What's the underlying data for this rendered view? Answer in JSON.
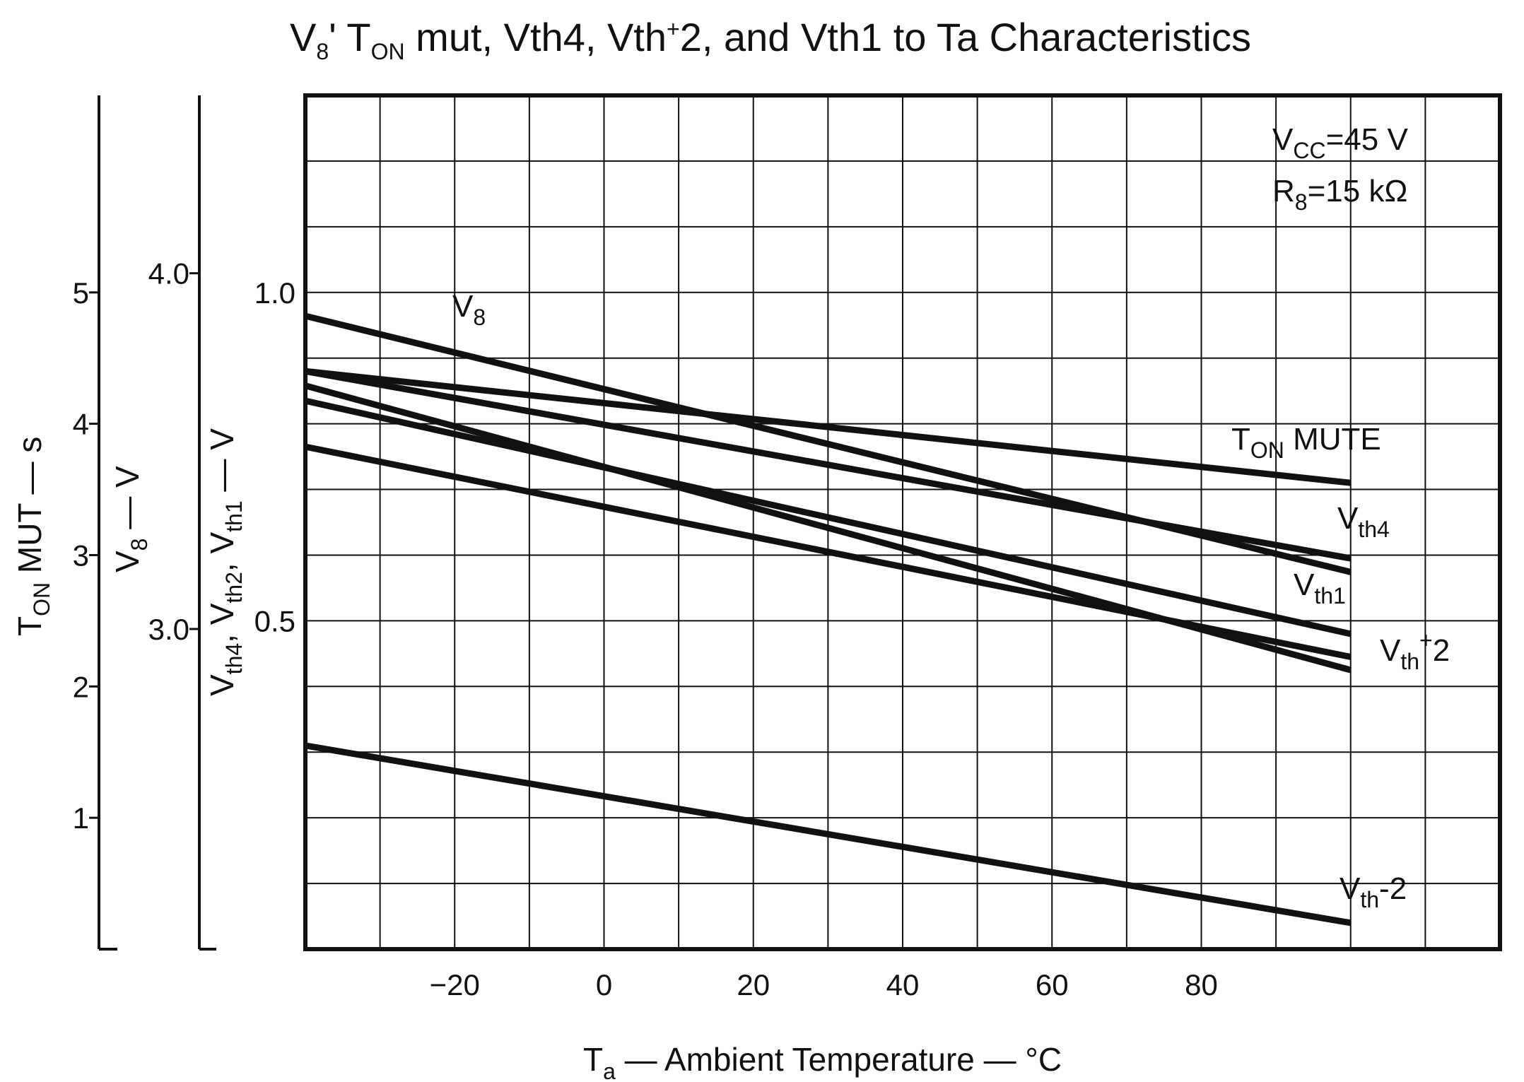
{
  "chart_data": {
    "type": "line",
    "title": {
      "v": "V",
      "v_sub": "8",
      "sep": "' T",
      "t_sub": "ON",
      "rest1": " mut, Vth4, Vth",
      "sup": "+",
      "rest2": "2, and Vth1 to Ta Characteristics"
    },
    "xlabel": {
      "t": "T",
      "t_sub": "a",
      "rest": " — Ambient  Temperature — °C"
    },
    "xlim": [
      -40,
      120
    ],
    "xticks": [
      -20,
      0,
      20,
      40,
      60,
      80
    ],
    "xtick_labels": [
      "−20",
      "0",
      "20",
      "40",
      "60",
      "80"
    ],
    "axes": [
      {
        "id": "ton",
        "label": {
          "t": "T",
          "t_sub": "ON",
          "rest": " MUT — s"
        },
        "range": [
          0,
          6.5
        ],
        "ticks": [
          1,
          2,
          3,
          4,
          5
        ],
        "tick_labels": [
          "1",
          "2",
          "3",
          "4",
          "5"
        ]
      },
      {
        "id": "v8",
        "label": {
          "v": "V",
          "v_sub": "8",
          "rest": " — V"
        },
        "range": [
          2.1,
          4.5
        ],
        "ticks": [
          3.0,
          4.0
        ],
        "tick_labels": [
          "3.0",
          "4.0"
        ]
      },
      {
        "id": "vth",
        "label": {
          "a": "V",
          "a_sub": "th4",
          "b": ", V",
          "b_sub": "th2",
          "c": ", V",
          "c_sub": "th1",
          "d": " — V"
        },
        "range": [
          0,
          1.3
        ],
        "ticks": [
          0.5,
          1.0
        ],
        "tick_labels": [
          "0.5",
          "1.0"
        ]
      }
    ],
    "series": [
      {
        "name": "V8",
        "label": {
          "main": "V",
          "sub": "8"
        },
        "axis": "v8",
        "x": [
          -40,
          100
        ],
        "values": [
          3.88,
          3.16
        ]
      },
      {
        "name": "TON MUTE",
        "label": {
          "main": "T",
          "sub": "ON",
          "rest": " MUTE"
        },
        "axis": "ton",
        "x": [
          -40,
          100
        ],
        "values": [
          4.4,
          3.55
        ]
      },
      {
        "name": "Vth4",
        "label": {
          "main": "V",
          "sub": "th4"
        },
        "axis": "vth",
        "x": [
          -40,
          100
        ],
        "values": [
          0.88,
          0.595
        ]
      },
      {
        "name": "Vth1",
        "label": {
          "main": "V",
          "sub": "th1"
        },
        "axis": "vth",
        "x": [
          -40,
          100
        ],
        "values": [
          0.835,
          0.48
        ]
      },
      {
        "name": "Vth+2",
        "label": {
          "main": "V",
          "sub": "th",
          "sup": "+",
          "rest": "2"
        },
        "axis": "vth",
        "x": [
          -40,
          100
        ],
        "values": [
          0.765,
          0.445
        ]
      },
      {
        "name": "Vth-2",
        "label": {
          "main": "V",
          "sub": "th",
          "rest": "-2"
        },
        "axis": "vth",
        "x": [
          -40,
          100
        ],
        "values": [
          0.31,
          0.04
        ]
      },
      {
        "name": "extra",
        "label": {
          "main": ""
        },
        "axis": "vth",
        "x": [
          -40,
          100
        ],
        "values": [
          0.858,
          0.425
        ]
      }
    ],
    "annotations": {
      "line1": {
        "main": "V",
        "sub": "CC",
        "rest": "=45  V"
      },
      "line2": {
        "main": "R",
        "sub": "8",
        "rest": "=15  kΩ"
      }
    }
  }
}
